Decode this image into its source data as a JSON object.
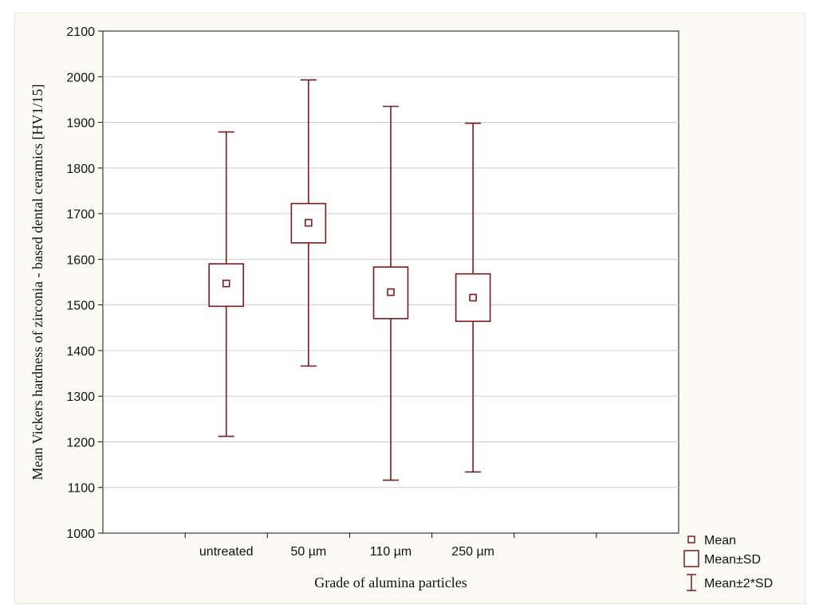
{
  "chart_data": {
    "type": "boxplot",
    "title": "",
    "xlabel": "Grade of alumina particles",
    "ylabel": "Mean Vickers hardness of zirconia - based dental ceramics [HV1/15]",
    "ylim": [
      1000,
      2100
    ],
    "yticks": [
      "1000",
      "1100",
      "1200",
      "1300",
      "1400",
      "1500",
      "1600",
      "1700",
      "1800",
      "1900",
      "2000",
      "2100"
    ],
    "grid": true,
    "legend_position": "bottom-right",
    "categories": [
      "untreated",
      "50 µm",
      "110 µm",
      "250 µm"
    ],
    "series": [
      {
        "category": "untreated",
        "mean": 1547,
        "sd_low": 1497,
        "sd_high": 1590,
        "sd2_low": 1212,
        "sd2_high": 1879
      },
      {
        "category": "50 µm",
        "mean": 1680,
        "sd_low": 1636,
        "sd_high": 1722,
        "sd2_low": 1366,
        "sd2_high": 1993
      },
      {
        "category": "110 µm",
        "mean": 1528,
        "sd_low": 1470,
        "sd_high": 1583,
        "sd2_low": 1116,
        "sd2_high": 1935
      },
      {
        "category": "250 µm",
        "mean": 1516,
        "sd_low": 1464,
        "sd_high": 1568,
        "sd2_low": 1134,
        "sd2_high": 1898
      }
    ],
    "legend": [
      {
        "key": "mean",
        "label": "Mean"
      },
      {
        "key": "sd",
        "label": "Mean±SD"
      },
      {
        "key": "sd2",
        "label": "Mean±2*SD"
      }
    ],
    "colors": {
      "series": "#7a1a1a",
      "grid": "#cfcfcf",
      "axis": "#111111",
      "plot_bg": "#ffffff",
      "page_bg": "#fbfbf3"
    }
  }
}
